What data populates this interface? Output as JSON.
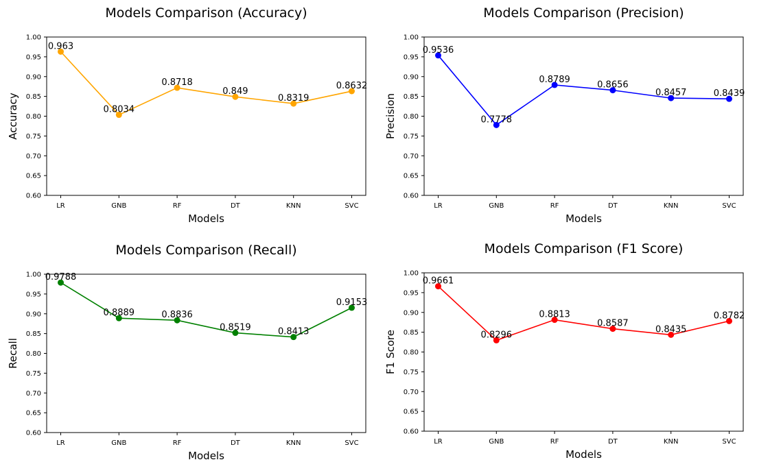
{
  "chart_data": [
    {
      "type": "line",
      "title": "Models Comparison (Accuracy)",
      "xlabel": "Models",
      "ylabel": "Accuracy",
      "categories": [
        "LR",
        "GNB",
        "RF",
        "DT",
        "KNN",
        "SVC"
      ],
      "values": [
        0.963,
        0.8034,
        0.8718,
        0.849,
        0.8319,
        0.8632
      ],
      "data_labels": [
        "0.963",
        "0.8034",
        "0.8718",
        "0.849",
        "0.8319",
        "0.8632"
      ],
      "ylim": [
        0.6,
        1.0
      ],
      "yticks": [
        "0.60",
        "0.65",
        "0.70",
        "0.75",
        "0.80",
        "0.85",
        "0.90",
        "0.95",
        "1.00"
      ],
      "color": "#ffa500",
      "marker": "circle",
      "grid": false
    },
    {
      "type": "line",
      "title": "Models Comparison (Precision)",
      "xlabel": "Models",
      "ylabel": "Precision",
      "categories": [
        "LR",
        "GNB",
        "RF",
        "DT",
        "KNN",
        "SVC"
      ],
      "values": [
        0.9536,
        0.7778,
        0.8789,
        0.8656,
        0.8457,
        0.8439
      ],
      "data_labels": [
        "0.9536",
        "0.7778",
        "0.8789",
        "0.8656",
        "0.8457",
        "0.8439"
      ],
      "ylim": [
        0.6,
        1.0
      ],
      "yticks": [
        "0.60",
        "0.65",
        "0.70",
        "0.75",
        "0.80",
        "0.85",
        "0.90",
        "0.95",
        "1.00"
      ],
      "color": "#0000ff",
      "marker": "circle",
      "grid": false
    },
    {
      "type": "line",
      "title": "Models Comparison (Recall)",
      "xlabel": "Models",
      "ylabel": "Recall",
      "categories": [
        "LR",
        "GNB",
        "RF",
        "DT",
        "KNN",
        "SVC"
      ],
      "values": [
        0.9788,
        0.8889,
        0.8836,
        0.8519,
        0.8413,
        0.9153
      ],
      "data_labels": [
        "0.9788",
        "0.8889",
        "0.8836",
        "0.8519",
        "0.8413",
        "0.9153"
      ],
      "ylim": [
        0.6,
        1.0
      ],
      "yticks": [
        "0.60",
        "0.65",
        "0.70",
        "0.75",
        "0.80",
        "0.85",
        "0.90",
        "0.95",
        "1.00"
      ],
      "color": "#008000",
      "marker": "circle",
      "grid": false
    },
    {
      "type": "line",
      "title": "Models Comparison (F1 Score)",
      "xlabel": "Models",
      "ylabel": "F1 Score",
      "categories": [
        "LR",
        "GNB",
        "RF",
        "DT",
        "KNN",
        "SVC"
      ],
      "values": [
        0.9661,
        0.8296,
        0.8813,
        0.8587,
        0.8435,
        0.8782
      ],
      "data_labels": [
        "0.9661",
        "0.8296",
        "0.8813",
        "0.8587",
        "0.8435",
        "0.8782"
      ],
      "ylim": [
        0.6,
        1.0
      ],
      "yticks": [
        "0.60",
        "0.65",
        "0.70",
        "0.75",
        "0.80",
        "0.85",
        "0.90",
        "0.95",
        "1.00"
      ],
      "color": "#ff0000",
      "marker": "circle",
      "grid": false
    }
  ]
}
